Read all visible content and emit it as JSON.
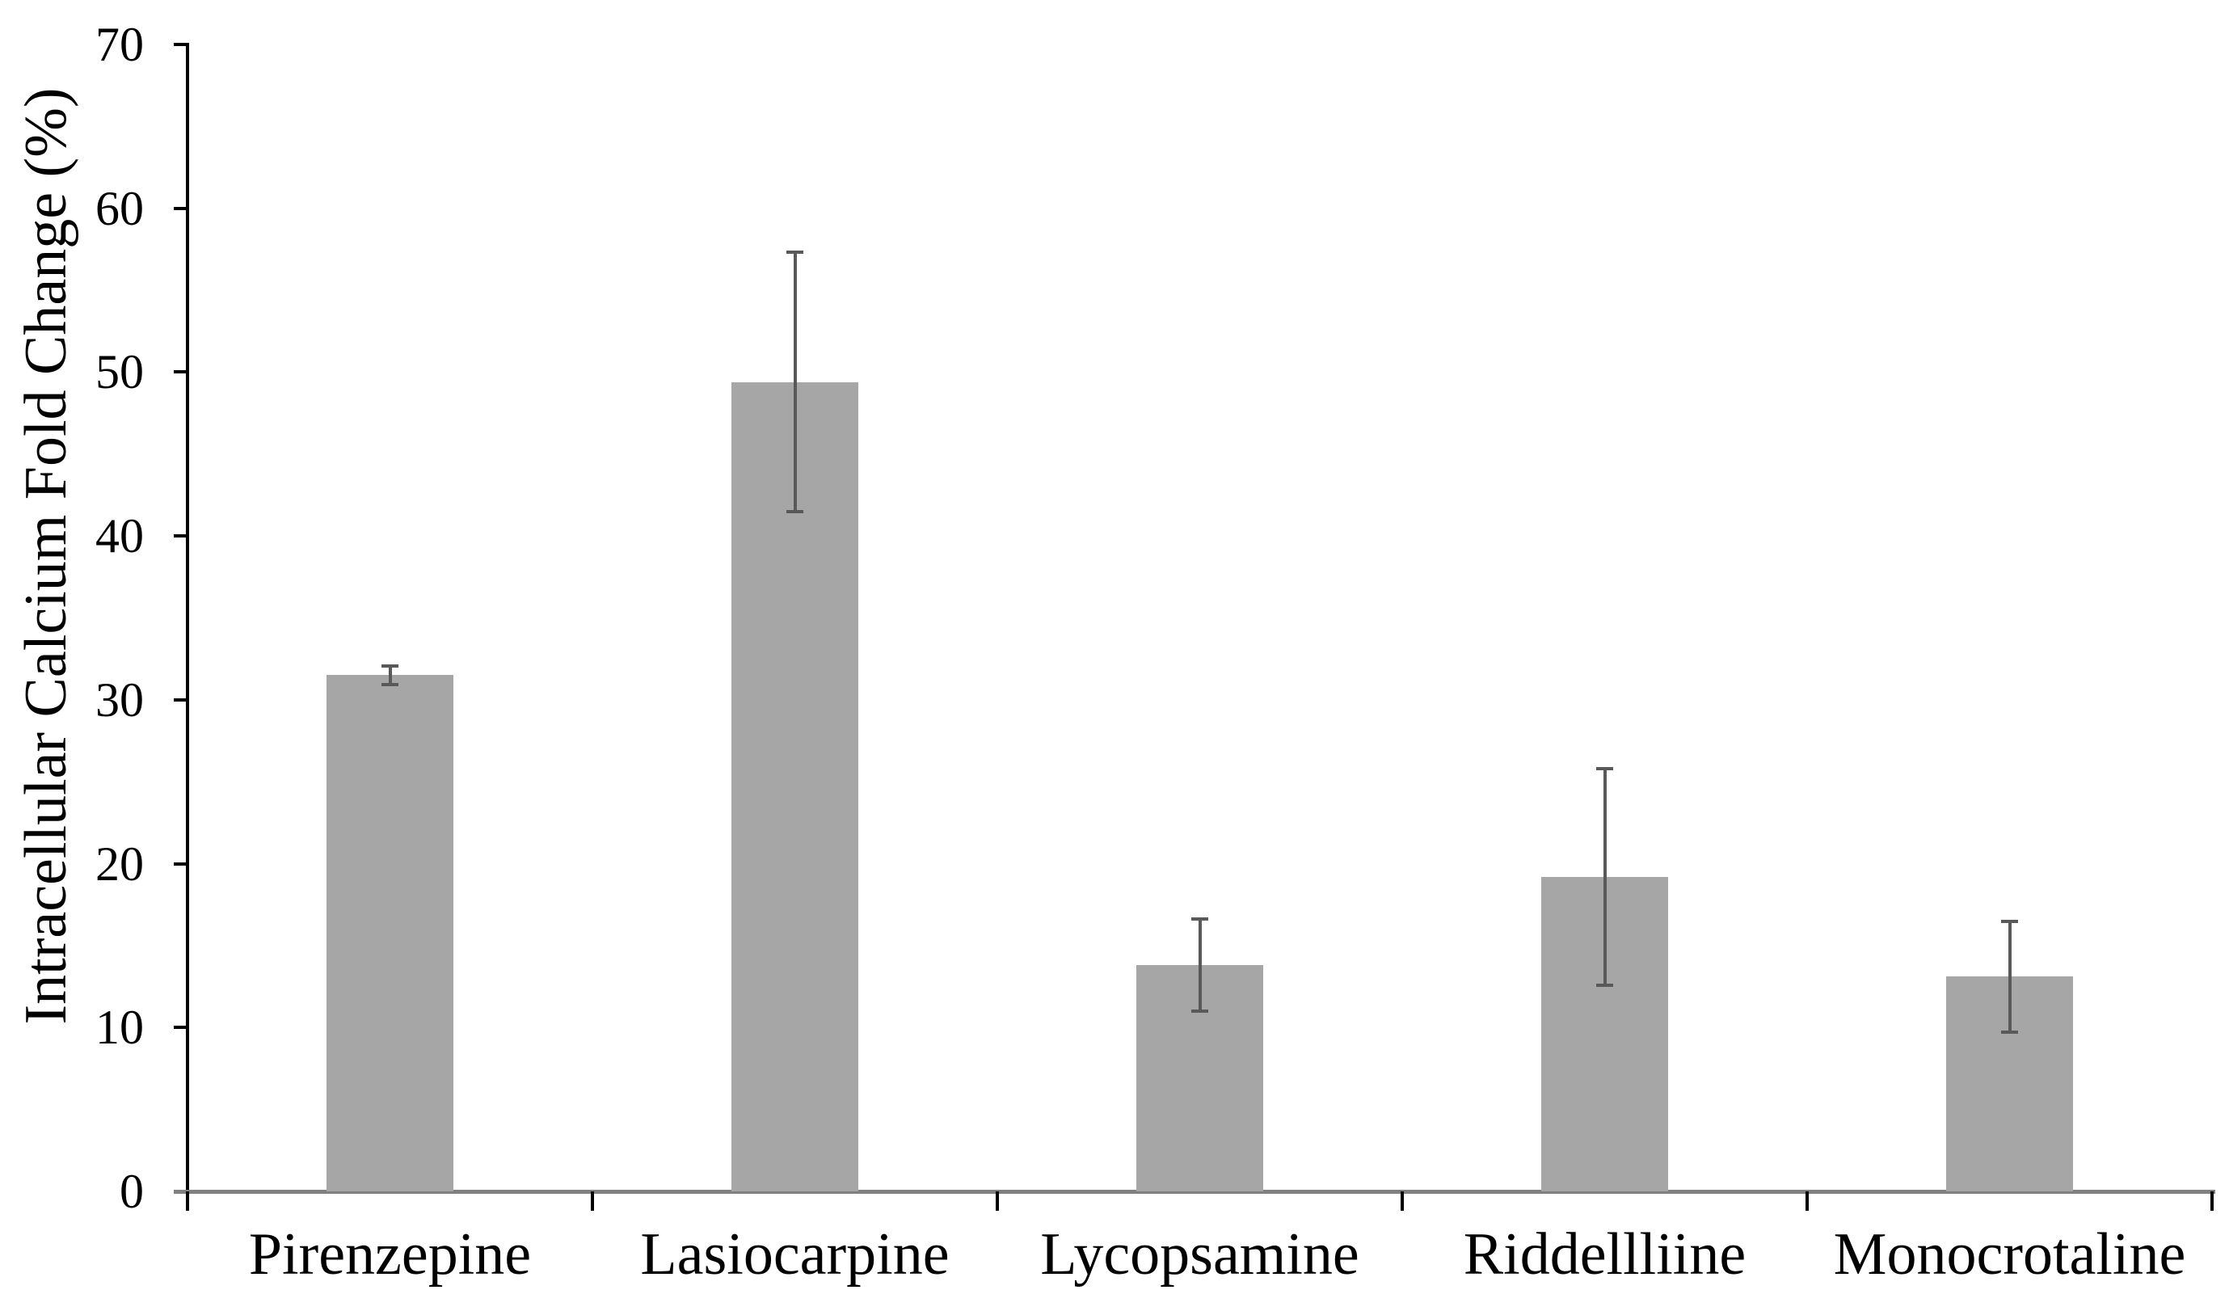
{
  "chart_data": {
    "type": "bar",
    "categories": [
      "Pirenzepine",
      "Lasiocarpine",
      "Lycopsamine",
      "Riddellliine",
      "Monocrotaline"
    ],
    "values": [
      31.5,
      49.4,
      13.8,
      19.2,
      13.1
    ],
    "error_bars": [
      0.55,
      7.9,
      2.8,
      6.6,
      3.4
    ],
    "title": "",
    "xlabel": "",
    "ylabel": "Intracellular Calcium Fold Change (%)",
    "ylim": [
      0,
      70
    ],
    "yticks": [
      0,
      10,
      20,
      30,
      40,
      50,
      60,
      70
    ],
    "grid": false,
    "legend": null,
    "colors": {
      "bar_fill": "#A6A6A6",
      "error_bar": "#595959",
      "value_axis": "#000000",
      "category_axis": "#808080",
      "text": "#000000",
      "background": "#FFFFFF"
    }
  }
}
